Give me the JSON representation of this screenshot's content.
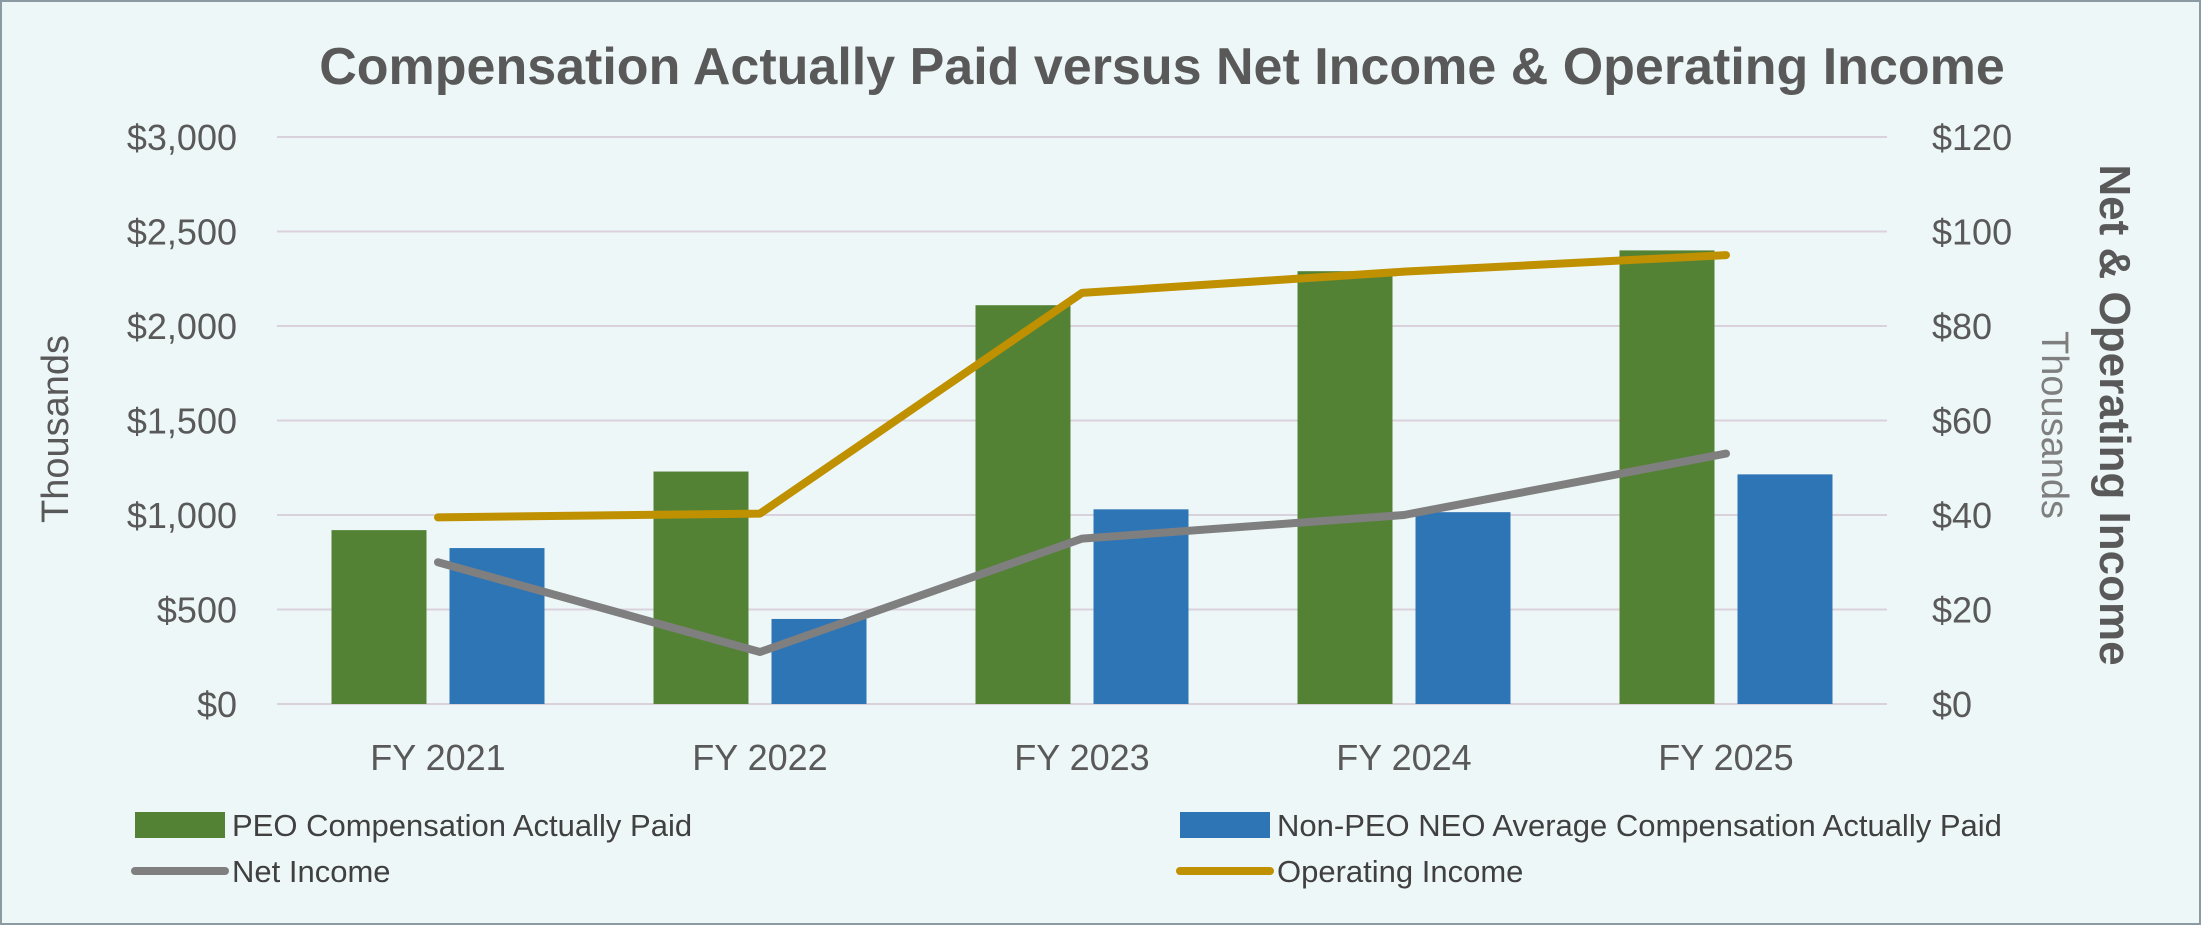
{
  "chart_data": {
    "type": "bar",
    "title": "Compensation Actually Paid versus Net Income & Operating Income",
    "categories": [
      "FY 2021",
      "FY 2022",
      "FY 2023",
      "FY 2024",
      "FY 2025"
    ],
    "y_left": {
      "title": "Thousands",
      "ticks": [
        "$0",
        "$500",
        "$1,000",
        "$1,500",
        "$2,000",
        "$2,500",
        "$3,000"
      ],
      "ylim": [
        0,
        3000
      ]
    },
    "y_right": {
      "title": "Net & Operating Income",
      "subtitle": "Thousands",
      "ticks": [
        "$0",
        "$20",
        "$40",
        "$60",
        "$80",
        "$100",
        "$120"
      ],
      "ylim": [
        0,
        120
      ]
    },
    "grid": true,
    "legend_position": "bottom",
    "series": [
      {
        "name": "PEO Compensation Actually Paid",
        "kind": "bar",
        "axis": "left",
        "color": "#548235",
        "values": [
          920,
          1230,
          2110,
          2290,
          2400
        ]
      },
      {
        "name": "Non-PEO NEO Average Compensation Actually Paid",
        "kind": "bar",
        "axis": "left",
        "color": "#2e75b6",
        "values": [
          825,
          450,
          1030,
          1015,
          1215
        ]
      },
      {
        "name": "Net Income",
        "kind": "line",
        "axis": "right",
        "color": "#7f7f7f",
        "values": [
          30,
          11,
          35,
          40,
          53
        ]
      },
      {
        "name": "Operating Income",
        "kind": "line",
        "axis": "right",
        "color": "#bf9000",
        "values": [
          39.5,
          40.3,
          87,
          91.5,
          95
        ]
      }
    ]
  }
}
